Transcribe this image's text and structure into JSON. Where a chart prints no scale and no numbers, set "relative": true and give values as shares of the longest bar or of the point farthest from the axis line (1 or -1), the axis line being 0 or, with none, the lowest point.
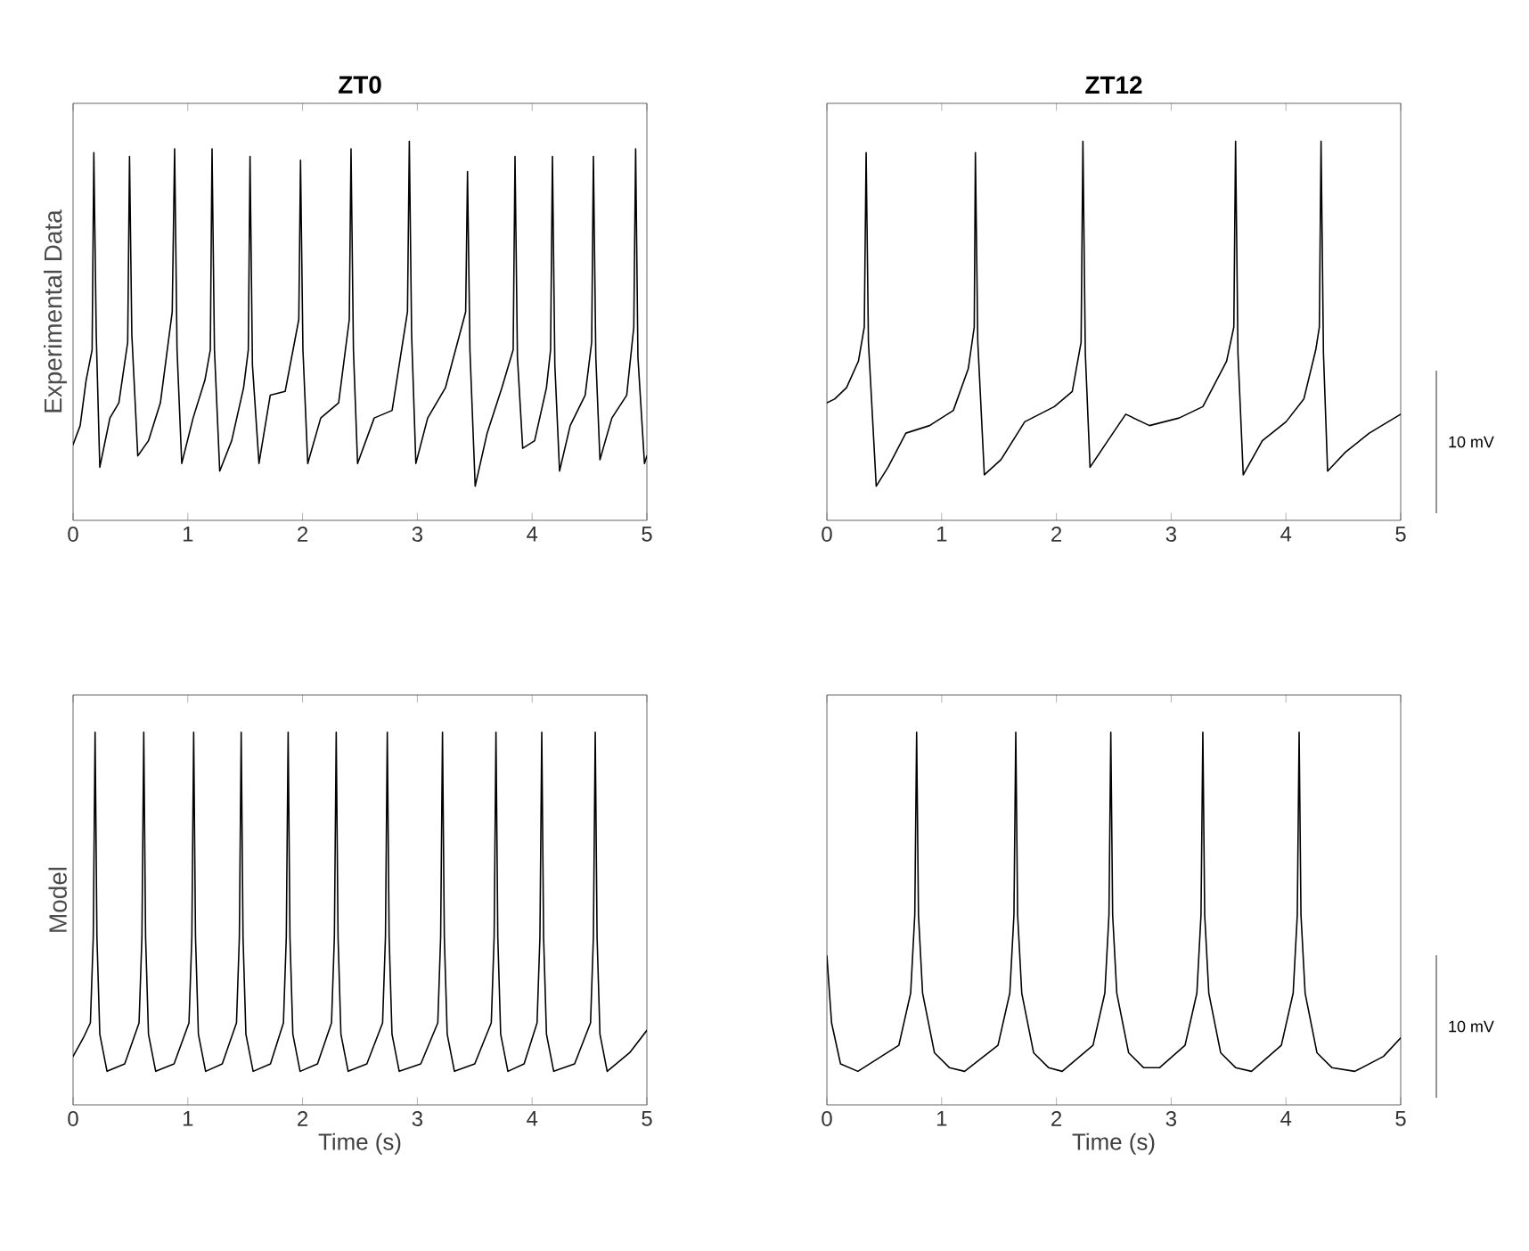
{
  "chart_data": [
    {
      "type": "line",
      "title": "ZT0",
      "ylabel": "Experimental Data",
      "relative": true,
      "color": "#000000",
      "xlim": [
        0,
        5
      ],
      "xticks": [
        0,
        1,
        2,
        3,
        4,
        5
      ],
      "x": [
        0,
        0.062,
        0.114,
        0.166,
        0.181,
        0.202,
        0.233,
        0.321,
        0.399,
        0.476,
        0.492,
        0.512,
        0.564,
        0.657,
        0.761,
        0.864,
        0.885,
        0.906,
        0.947,
        1.046,
        1.149,
        1.196,
        1.211,
        1.232,
        1.278,
        1.382,
        1.486,
        1.527,
        1.542,
        1.563,
        1.62,
        1.718,
        1.848,
        1.967,
        1.982,
        2.003,
        2.045,
        2.158,
        2.314,
        2.407,
        2.422,
        2.443,
        2.479,
        2.624,
        2.78,
        2.914,
        2.93,
        2.95,
        2.987,
        3.09,
        3.245,
        3.421,
        3.437,
        3.458,
        3.504,
        3.608,
        3.737,
        3.835,
        3.851,
        3.872,
        3.918,
        4.022,
        4.125,
        4.161,
        4.177,
        4.198,
        4.239,
        4.332,
        4.462,
        4.519,
        4.534,
        4.555,
        4.591,
        4.695,
        4.824,
        4.886,
        4.902,
        4.922,
        4.979,
        5
      ],
      "values": [
        0.2,
        0.25,
        0.37,
        0.45,
        0.97,
        0.49,
        0.14,
        0.27,
        0.31,
        0.47,
        0.96,
        0.49,
        0.17,
        0.21,
        0.31,
        0.55,
        0.98,
        0.45,
        0.15,
        0.27,
        0.37,
        0.45,
        0.98,
        0.45,
        0.13,
        0.21,
        0.35,
        0.45,
        0.96,
        0.41,
        0.15,
        0.33,
        0.34,
        0.53,
        0.95,
        0.45,
        0.15,
        0.27,
        0.31,
        0.53,
        0.98,
        0.45,
        0.15,
        0.27,
        0.29,
        0.55,
        1,
        0.49,
        0.15,
        0.27,
        0.35,
        0.55,
        0.92,
        0.45,
        0.09,
        0.23,
        0.35,
        0.45,
        0.96,
        0.43,
        0.19,
        0.21,
        0.35,
        0.45,
        0.96,
        0.41,
        0.13,
        0.25,
        0.33,
        0.47,
        0.96,
        0.43,
        0.16,
        0.27,
        0.33,
        0.51,
        0.98,
        0.43,
        0.15,
        0.17
      ]
    },
    {
      "type": "line",
      "title": "ZT12",
      "relative": true,
      "color": "#000000",
      "xlim": [
        0,
        5
      ],
      "xticks": [
        0,
        1,
        2,
        3,
        4,
        5
      ],
      "annotations": [
        "10 mV"
      ],
      "x": [
        0,
        0.067,
        0.171,
        0.275,
        0.326,
        0.342,
        0.362,
        0.43,
        0.533,
        0.688,
        0.895,
        1.102,
        1.232,
        1.284,
        1.294,
        1.315,
        1.372,
        1.517,
        1.724,
        1.982,
        2.138,
        2.215,
        2.231,
        2.252,
        2.293,
        2.448,
        2.604,
        2.811,
        3.069,
        3.276,
        3.483,
        3.546,
        3.561,
        3.582,
        3.628,
        3.794,
        4.001,
        4.156,
        4.26,
        4.291,
        4.306,
        4.327,
        4.363,
        4.519,
        4.726,
        5
      ],
      "values": [
        0.31,
        0.32,
        0.35,
        0.42,
        0.51,
        0.97,
        0.47,
        0.09,
        0.14,
        0.23,
        0.25,
        0.29,
        0.4,
        0.51,
        0.97,
        0.47,
        0.12,
        0.16,
        0.26,
        0.3,
        0.34,
        0.47,
        1,
        0.44,
        0.14,
        0.21,
        0.28,
        0.25,
        0.27,
        0.3,
        0.42,
        0.51,
        1,
        0.44,
        0.12,
        0.21,
        0.26,
        0.32,
        0.45,
        0.51,
        1,
        0.44,
        0.13,
        0.18,
        0.23,
        0.28
      ]
    },
    {
      "type": "line",
      "ylabel": "Model",
      "xlabel": "Time (s)",
      "relative": true,
      "color": "#000000",
      "xlim": [
        0,
        5
      ],
      "xticks": [
        0,
        1,
        2,
        3,
        4,
        5
      ],
      "x": [
        0,
        0.09,
        0.151,
        0.176,
        0.192,
        0.208,
        0.233,
        0.296,
        0.45,
        0.575,
        0.6,
        0.616,
        0.632,
        0.657,
        0.72,
        0.88,
        1.01,
        1.035,
        1.051,
        1.067,
        1.092,
        1.155,
        1.3,
        1.424,
        1.449,
        1.465,
        1.481,
        1.506,
        1.569,
        1.72,
        1.833,
        1.858,
        1.874,
        1.89,
        1.915,
        1.978,
        2.13,
        2.252,
        2.277,
        2.293,
        2.309,
        2.334,
        2.397,
        2.56,
        2.697,
        2.722,
        2.738,
        2.754,
        2.779,
        2.842,
        3.03,
        3.178,
        3.203,
        3.219,
        3.235,
        3.26,
        3.323,
        3.5,
        3.644,
        3.669,
        3.685,
        3.701,
        3.726,
        3.789,
        3.93,
        4.043,
        4.068,
        4.084,
        4.1,
        4.125,
        4.188,
        4.37,
        4.509,
        4.534,
        4.55,
        4.566,
        4.591,
        4.654,
        4.85,
        5
      ],
      "values": [
        0.13,
        0.18,
        0.22,
        0.45,
        1,
        0.45,
        0.19,
        0.09,
        0.11,
        0.22,
        0.45,
        1,
        0.45,
        0.19,
        0.09,
        0.11,
        0.22,
        0.45,
        1,
        0.45,
        0.19,
        0.09,
        0.11,
        0.22,
        0.45,
        1,
        0.45,
        0.19,
        0.09,
        0.11,
        0.22,
        0.45,
        1,
        0.45,
        0.19,
        0.09,
        0.11,
        0.22,
        0.45,
        1,
        0.45,
        0.19,
        0.09,
        0.11,
        0.22,
        0.45,
        1,
        0.45,
        0.19,
        0.09,
        0.11,
        0.22,
        0.45,
        1,
        0.45,
        0.19,
        0.09,
        0.11,
        0.22,
        0.45,
        1,
        0.45,
        0.19,
        0.09,
        0.11,
        0.22,
        0.45,
        1,
        0.45,
        0.19,
        0.09,
        0.11,
        0.22,
        0.45,
        1,
        0.45,
        0.19,
        0.09,
        0.14,
        0.2
      ]
    },
    {
      "type": "line",
      "xlabel": "Time (s)",
      "relative": true,
      "color": "#000000",
      "xlim": [
        0,
        5
      ],
      "xticks": [
        0,
        1,
        2,
        3,
        4,
        5
      ],
      "annotations": [
        "10 mV"
      ],
      "x": [
        0,
        0.041,
        0.119,
        0.27,
        0.627,
        0.73,
        0.766,
        0.782,
        0.798,
        0.834,
        0.937,
        1.067,
        1.2,
        1.491,
        1.594,
        1.63,
        1.646,
        1.662,
        1.698,
        1.801,
        1.931,
        2.05,
        2.319,
        2.422,
        2.458,
        2.474,
        2.49,
        2.526,
        2.629,
        2.759,
        2.9,
        3.121,
        3.224,
        3.26,
        3.276,
        3.292,
        3.328,
        3.431,
        3.561,
        3.7,
        3.96,
        4.063,
        4.099,
        4.115,
        4.131,
        4.167,
        4.27,
        4.4,
        4.6,
        4.85,
        5
      ],
      "values": [
        0.4,
        0.22,
        0.11,
        0.09,
        0.16,
        0.3,
        0.51,
        1,
        0.51,
        0.3,
        0.14,
        0.1,
        0.09,
        0.16,
        0.3,
        0.51,
        1,
        0.51,
        0.3,
        0.14,
        0.1,
        0.09,
        0.16,
        0.3,
        0.51,
        1,
        0.51,
        0.3,
        0.14,
        0.1,
        0.1,
        0.16,
        0.3,
        0.51,
        1,
        0.51,
        0.3,
        0.14,
        0.1,
        0.09,
        0.16,
        0.3,
        0.51,
        1,
        0.51,
        0.3,
        0.14,
        0.1,
        0.09,
        0.13,
        0.18
      ]
    }
  ]
}
